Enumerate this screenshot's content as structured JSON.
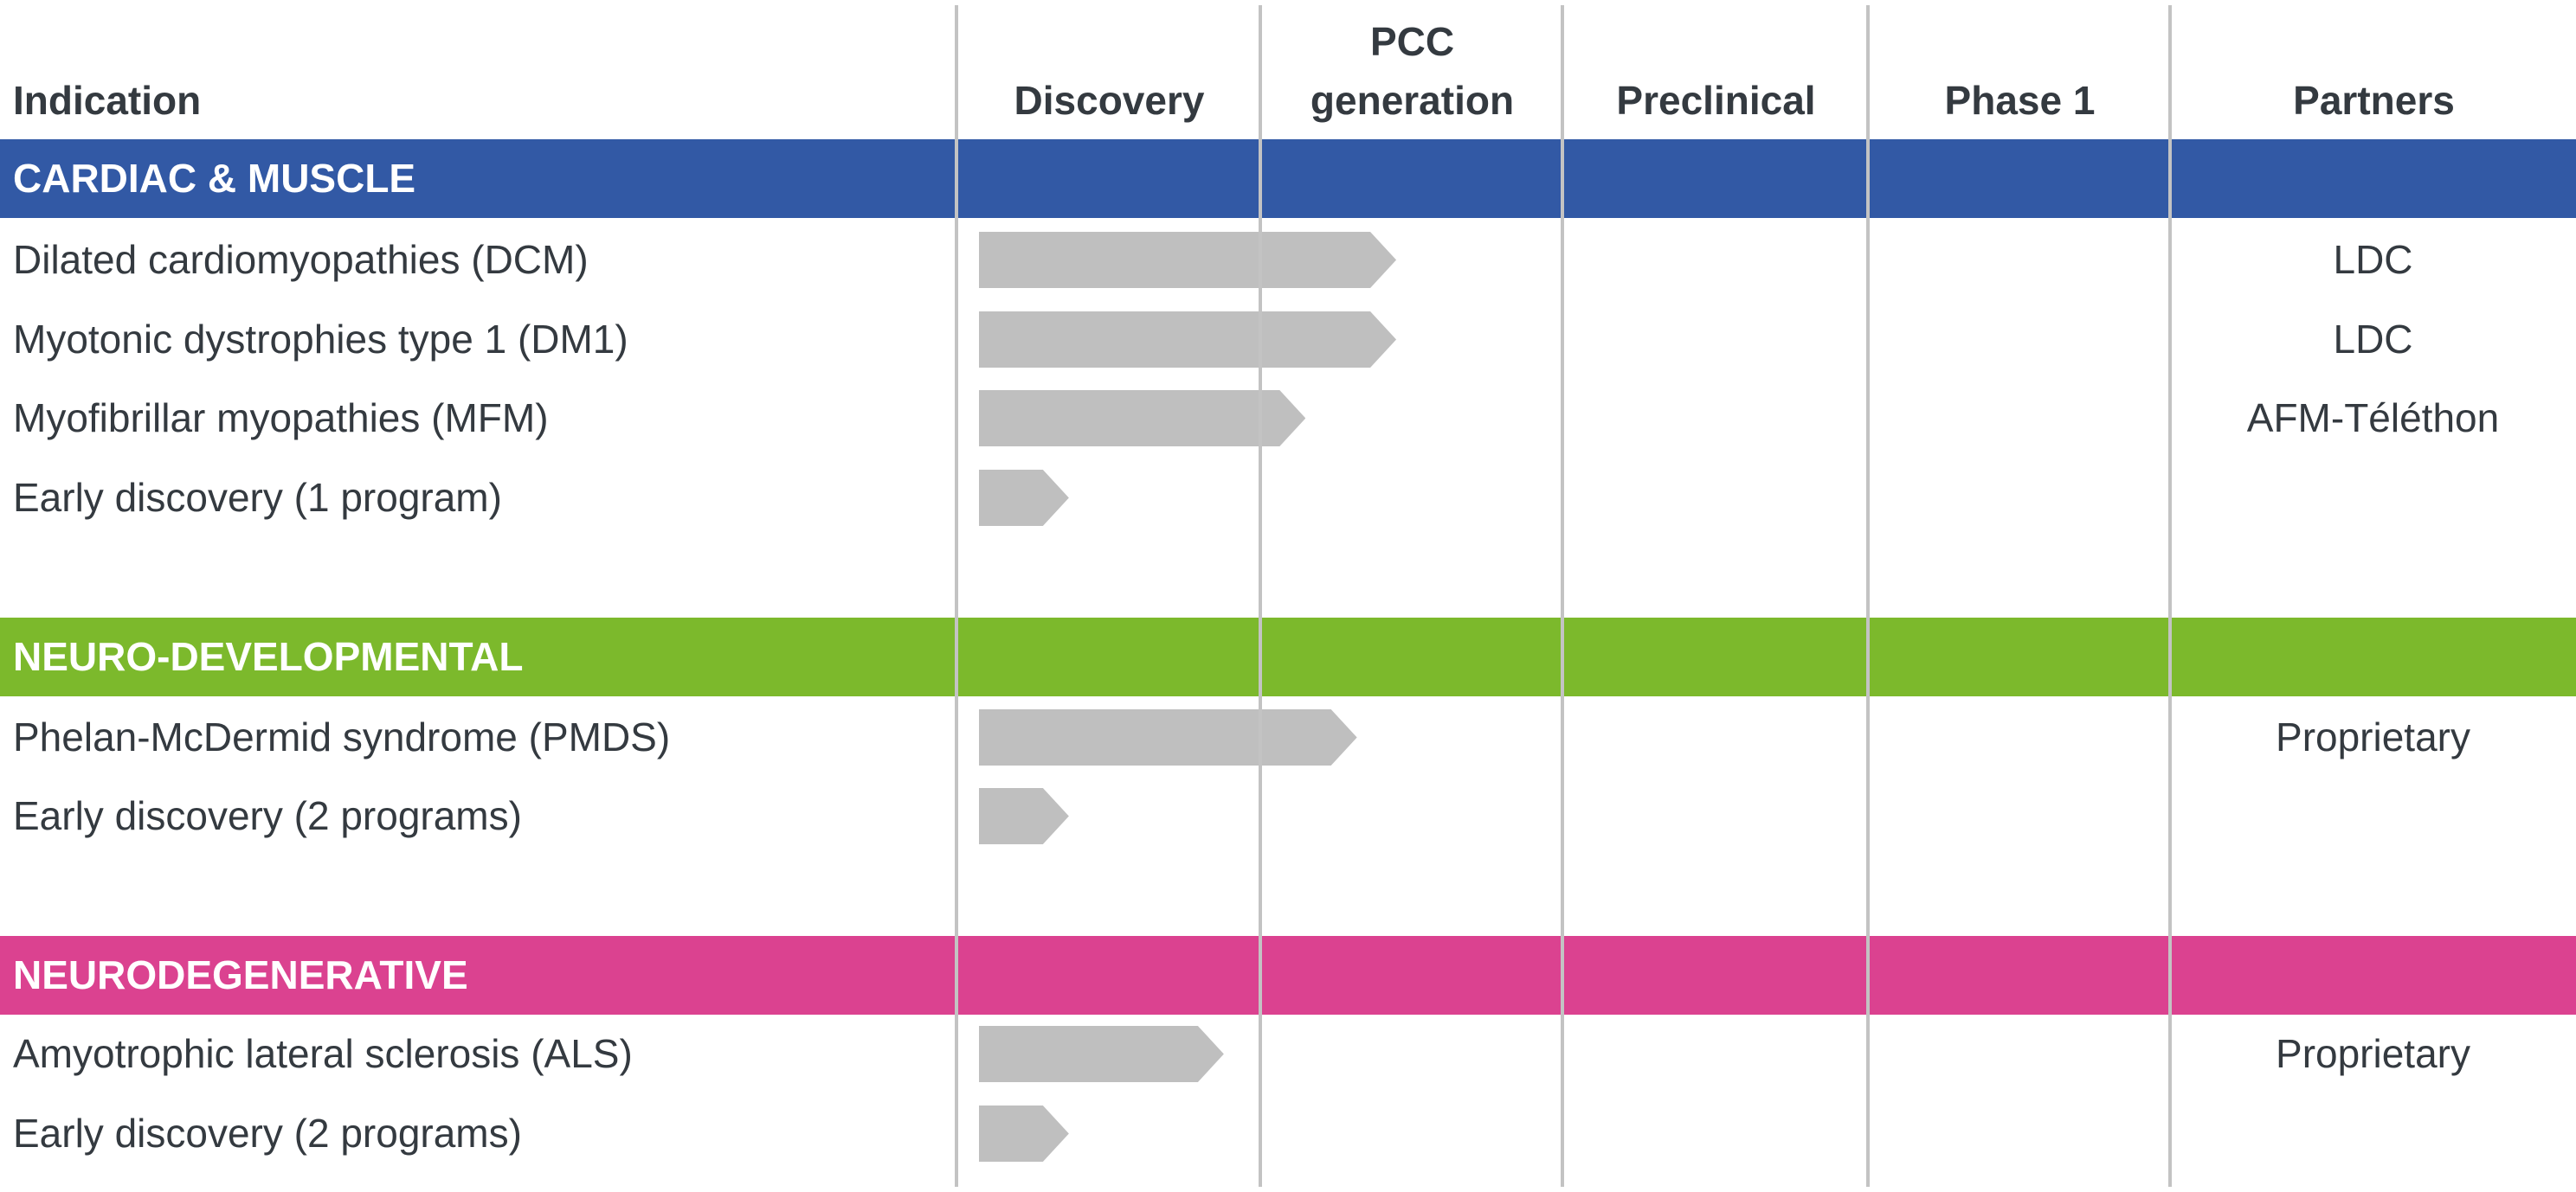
{
  "header": {
    "indication": "Indication",
    "stages": [
      "Discovery",
      "PCC generation",
      "Preclinical",
      "Phase 1"
    ],
    "pcc_line1": "PCC",
    "pcc_line2": "generation",
    "partners": "Partners"
  },
  "colors": {
    "cardiac": "#3259a5",
    "neurodev": "#7cb92c",
    "neurodegen": "#db4290",
    "bar": "#bfbfbf",
    "text": "#343a40"
  },
  "groups": [
    {
      "title": "CARDIAC & MUSCLE",
      "rows": [
        {
          "indication": "Dilated cardiomyopathies (DCM)",
          "stage_progress": 1.45,
          "partner": "LDC"
        },
        {
          "indication": "Myotonic dystrophies type 1 (DM1)",
          "stage_progress": 1.45,
          "partner": "LDC"
        },
        {
          "indication": "Myofibrillar myopathies (MFM)",
          "stage_progress": 1.15,
          "partner": "AFM-Téléthon"
        },
        {
          "indication": "Early discovery (1 program)",
          "stage_progress": 0.37,
          "partner": ""
        }
      ]
    },
    {
      "title": "NEURO-DEVELOPMENTAL",
      "rows": [
        {
          "indication": "Phelan-McDermid syndrome (PMDS)",
          "stage_progress": 1.32,
          "partner": "Proprietary"
        },
        {
          "indication": "Early discovery (2 programs)",
          "stage_progress": 0.37,
          "partner": ""
        }
      ]
    },
    {
      "title": "NEURODEGENERATIVE",
      "rows": [
        {
          "indication": "Amyotrophic lateral sclerosis (ALS)",
          "stage_progress": 0.88,
          "partner": "Proprietary"
        },
        {
          "indication": "Early discovery (2 programs)",
          "stage_progress": 0.37,
          "partner": ""
        }
      ]
    }
  ]
}
